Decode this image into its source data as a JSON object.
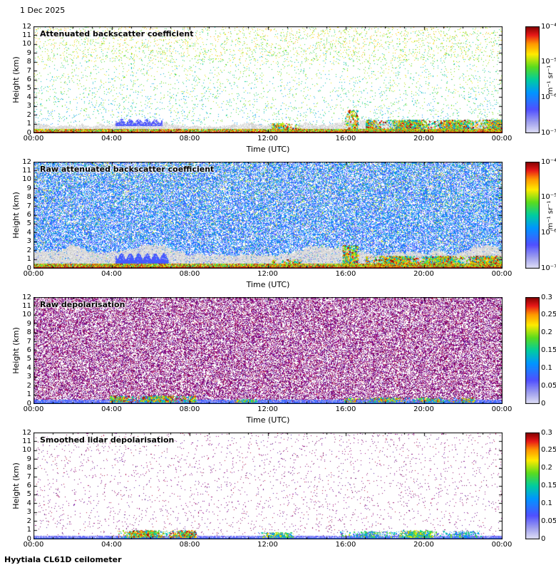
{
  "date_label": "1 Dec 2025",
  "footer_label": "Hyytiala CL61D ceilometer",
  "axes": {
    "xlabel": "Time (UTC)",
    "ylabel": "Height (km)",
    "xticks": [
      "00:00",
      "04:00",
      "08:00",
      "12:00",
      "16:00",
      "20:00",
      "00:00"
    ],
    "yticks": [
      "12",
      "11",
      "10",
      "9",
      "8",
      "7",
      "6",
      "5",
      "4",
      "3",
      "2",
      "1",
      "0"
    ]
  },
  "panels": [
    {
      "title": "Attenuated backscatter coefficient",
      "colorbar": {
        "scale": "log",
        "unit": "m⁻¹ sr⁻¹",
        "ticks": [
          "10⁻⁴",
          "10⁻⁵",
          "10⁻⁶",
          "10⁻⁷"
        ]
      }
    },
    {
      "title": "Raw attenuated backscatter coefficient",
      "colorbar": {
        "scale": "log",
        "unit": "m⁻¹ sr⁻¹",
        "ticks": [
          "10⁻⁴",
          "10⁻⁵",
          "10⁻⁶",
          "10⁻⁷"
        ]
      }
    },
    {
      "title": "Raw depolarisation",
      "colorbar": {
        "scale": "linear",
        "ticks": [
          "0.3",
          "0.25",
          "0.2",
          "0.15",
          "0.1",
          "0.05",
          "0"
        ]
      }
    },
    {
      "title": "Smoothed lidar depolarisation",
      "colorbar": {
        "scale": "linear",
        "ticks": [
          "0.3",
          "0.25",
          "0.2",
          "0.15",
          "0.1",
          "0.05",
          "0"
        ]
      }
    }
  ],
  "chart_data": [
    {
      "type": "heatmap",
      "title": "Attenuated backscatter coefficient",
      "xlabel": "Time (UTC)",
      "ylabel": "Height (km)",
      "x_range_hours": [
        0,
        24
      ],
      "y_range_km": [
        0,
        12
      ],
      "colorbar": {
        "scale": "log",
        "min": 1e-07,
        "max": 0.0001,
        "unit": "m⁻¹ sr⁻¹"
      },
      "features": [
        "sparse green/cyan/yellow noise speckles through the full 0-12 km profile",
        "grey attenuated band below ~1 km all day",
        "strong red/yellow surface echo below ~0.4 km",
        "blue spiky fog/haze structures ~04:30-06:30 near 1 km",
        "colourful low-level cloud/precipitation patches ~12:30-13:30, ~16:20 (up to ~2.5 km) and 17:00-24:00 below ~1.5 km"
      ],
      "noise_layers": [
        {
          "kind": "speckle",
          "coverage": 0.045,
          "k0": 0.9,
          "k1": 12,
          "vmin": 0.3,
          "vmax": 0.85
        },
        {
          "kind": "speckle",
          "coverage": 0.035,
          "k0": 8,
          "k1": 12,
          "vmin": 0.45,
          "vmax": 0.85
        },
        {
          "kind": "gray",
          "k0": 0,
          "k1": 1.0,
          "jitter": 0.8,
          "coverage": 0.8
        },
        {
          "kind": "spikes",
          "h0": 4.2,
          "h1": 6.6,
          "k0": 0.8,
          "k1": 1.6,
          "v": 0.22,
          "n": 900
        },
        {
          "kind": "patch",
          "h0": 12.2,
          "h1": 13.7,
          "k0": 0.15,
          "k1": 1.1,
          "n": 700,
          "vmin": 0.4,
          "vmax": 1.0
        },
        {
          "kind": "patch",
          "h0": 15.9,
          "h1": 16.6,
          "k0": 0.2,
          "k1": 2.6,
          "n": 700,
          "vmin": 0.4,
          "vmax": 1.0
        },
        {
          "kind": "patch",
          "h0": 17.0,
          "h1": 24.0,
          "k0": 0.05,
          "k1": 1.5,
          "n": 9000,
          "vmin": 0.35,
          "vmax": 1.0
        },
        {
          "kind": "strip",
          "k1": 0.45,
          "coverage": 0.92,
          "vmin": 0.5,
          "vmax": 1.0
        },
        {
          "kind": "line",
          "k1": 0.15,
          "v": 0.97
        }
      ]
    },
    {
      "type": "heatmap",
      "title": "Raw attenuated backscatter coefficient",
      "xlabel": "Time (UTC)",
      "ylabel": "Height (km)",
      "x_range_hours": [
        0,
        24
      ],
      "y_range_km": [
        0,
        12
      ],
      "colorbar": {
        "scale": "log",
        "min": 1e-07,
        "max": 0.0001,
        "unit": "m⁻¹ sr⁻¹"
      },
      "features": [
        "dense blue instrument noise over the whole profile with scattered green speckles",
        "whitish-grey band between ~0.4 and ~2 km",
        "dense dark-blue layer ~04:30-07:00 near 1 km",
        "red/yellow surface echo below ~0.5 km",
        "colourful patches ~12:30-13:30, ~16:20 and 17:00-24:00 below ~1.4 km"
      ],
      "noise_layers": [
        {
          "kind": "dense",
          "coverage": 0.6,
          "k0": 0,
          "k1": 12,
          "vmin": 0.16,
          "vmax": 0.44,
          "accent": 0.1,
          "avmin": 0.48,
          "avmax": 0.8
        },
        {
          "kind": "gray",
          "k0": 0.35,
          "k1": 1.9,
          "jitter": 1.0,
          "coverage": 0.9
        },
        {
          "kind": "spikes",
          "h0": 4.2,
          "h1": 6.9,
          "k0": 0.55,
          "k1": 1.7,
          "v": 0.24,
          "n": 3000
        },
        {
          "kind": "patch",
          "h0": 12.2,
          "h1": 13.7,
          "k0": 0.1,
          "k1": 1.0,
          "n": 900,
          "vmin": 0.4,
          "vmax": 1.0
        },
        {
          "kind": "patch",
          "h0": 15.8,
          "h1": 16.6,
          "k0": 0.2,
          "k1": 2.6,
          "n": 800,
          "vmin": 0.4,
          "vmax": 1.0
        },
        {
          "kind": "patch",
          "h0": 17.0,
          "h1": 24.0,
          "k0": 0.05,
          "k1": 1.4,
          "n": 10000,
          "vmin": 0.35,
          "vmax": 1.0
        },
        {
          "kind": "strip",
          "k1": 0.5,
          "coverage": 0.95,
          "vmin": 0.5,
          "vmax": 1.0
        },
        {
          "kind": "line",
          "k1": 0.15,
          "v": 0.97
        }
      ]
    },
    {
      "type": "heatmap",
      "title": "Raw depolarisation",
      "xlabel": "Time (UTC)",
      "ylabel": "Height (km)",
      "x_range_hours": [
        0,
        24
      ],
      "y_range_km": [
        0,
        12
      ],
      "colorbar": {
        "scale": "linear",
        "min": 0,
        "max": 0.3
      },
      "features": [
        "saturated dark-magenta depolarisation noise over the full profile",
        "light-blue low-depolarisation band below ~0.5 km",
        "high-depolarisation red/yellow patches ~04:00-08:00 and 16:00-22:30 near the surface",
        "thin blue line at ground level"
      ],
      "noise_layers": [
        {
          "kind": "magenta",
          "coverage": 0.52
        },
        {
          "kind": "strip",
          "k1": 0.45,
          "coverage": 0.93,
          "vmin": 0.05,
          "vmax": 0.33
        },
        {
          "kind": "patch",
          "h0": 3.9,
          "h1": 8.3,
          "k0": 0.15,
          "k1": 0.9,
          "n": 3200,
          "vmin": 0.3,
          "vmax": 1.0
        },
        {
          "kind": "patch",
          "h0": 10.3,
          "h1": 11.4,
          "k0": 0.1,
          "k1": 0.5,
          "n": 400,
          "vmin": 0.3,
          "vmax": 0.9
        },
        {
          "kind": "patch",
          "h0": 15.9,
          "h1": 22.6,
          "k0": 0.05,
          "k1": 0.7,
          "n": 2400,
          "vmin": 0.25,
          "vmax": 0.95
        },
        {
          "kind": "line",
          "k1": 0.12,
          "v": 0.27
        }
      ]
    },
    {
      "type": "heatmap",
      "title": "Smoothed lidar depolarisation",
      "xlabel": "Time (UTC)",
      "ylabel": "Height (km)",
      "x_range_hours": [
        0,
        24
      ],
      "y_range_km": [
        0,
        12
      ],
      "colorbar": {
        "scale": "linear",
        "min": 0,
        "max": 0.3
      },
      "features": [
        "sparse magenta noise speckles on white background",
        "pale blue low-depolarisation band below ~0.4 km",
        "high-depolarisation red/yellow blob ~04:30-08:00 below ~1 km",
        "green/blue patches ~11:30-13:00 and 16:00-23:00 near the surface"
      ],
      "noise_layers": [
        {
          "kind": "magenta",
          "coverage": 0.028
        },
        {
          "kind": "strip",
          "k1": 0.4,
          "coverage": 0.88,
          "vmin": 0.06,
          "vmax": 0.24
        },
        {
          "kind": "patch",
          "h0": 4.3,
          "h1": 8.3,
          "k0": 0.15,
          "k1": 1.0,
          "n": 3000,
          "vmin": 0.35,
          "vmax": 1.0
        },
        {
          "kind": "patch",
          "h0": 11.4,
          "h1": 13.3,
          "k0": 0.1,
          "k1": 0.8,
          "n": 700,
          "vmin": 0.25,
          "vmax": 0.8
        },
        {
          "kind": "patch",
          "h0": 15.7,
          "h1": 22.9,
          "k0": 0.05,
          "k1": 0.9,
          "n": 2600,
          "vmin": 0.12,
          "vmax": 0.7
        },
        {
          "kind": "patch",
          "h0": 18.7,
          "h1": 20.4,
          "k0": 0.2,
          "k1": 1.0,
          "n": 600,
          "vmin": 0.35,
          "vmax": 0.85
        },
        {
          "kind": "line",
          "k1": 0.12,
          "v": 0.27
        }
      ]
    }
  ]
}
